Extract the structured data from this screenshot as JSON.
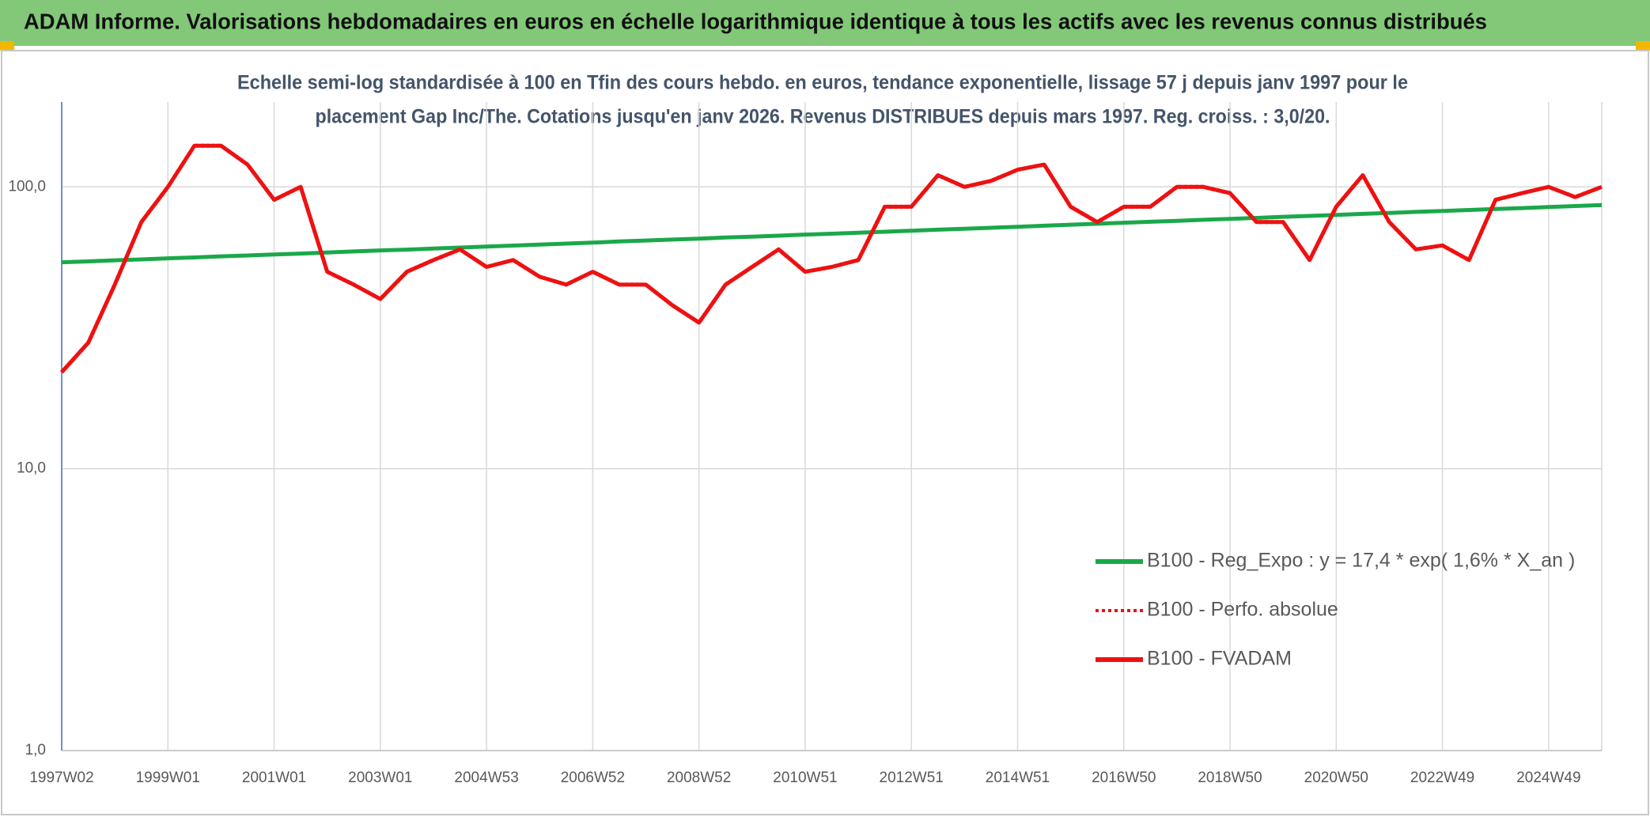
{
  "chart_data": {
    "type": "line",
    "title": "ADAM Informe. Valorisations hebdomadaires en euros en échelle logarithmique identique à tous les actifs avec les revenus connus distribués",
    "subtitle": [
      "Echelle semi-log standardisée à 100 en Tfin des cours hebdo. en euros, tendance exponentielle, lissage 57 j depuis janv 1997 pour le",
      "placement Gap Inc/The. Cotations jusqu'en janv 2026. Revenus DISTRIBUES depuis mars 1997. Reg. croiss. : 3,0/20."
    ],
    "log_scale": true,
    "grid": true,
    "legend": "right",
    "ylim": [
      1,
      200
    ],
    "yticks": [
      {
        "value": 1,
        "label": "1,0"
      },
      {
        "value": 10,
        "label": "10,0"
      },
      {
        "value": 100,
        "label": "100,0"
      }
    ],
    "categories": [
      "1997W02",
      null,
      null,
      null,
      "1999W01",
      null,
      null,
      null,
      "2001W01",
      null,
      null,
      null,
      "2003W01",
      null,
      null,
      null,
      "2004W53",
      null,
      null,
      null,
      "2006W52",
      null,
      null,
      null,
      "2008W52",
      null,
      null,
      null,
      "2010W51",
      null,
      null,
      null,
      "2012W51",
      null,
      null,
      null,
      "2014W51",
      null,
      null,
      null,
      "2016W50",
      null,
      null,
      null,
      "2018W50",
      null,
      null,
      null,
      "2020W50",
      null,
      null,
      null,
      "2022W49",
      null,
      null,
      null,
      "2024W49",
      null,
      null
    ],
    "series": [
      {
        "name": "B100 - Reg_Expo : y = 17,4 * exp( 1,6% *  X_an )",
        "color": "#1aa84a",
        "style": "solid",
        "values": [
          54.0,
          54.4,
          54.9,
          55.3,
          55.8,
          56.2,
          56.7,
          57.1,
          57.6,
          58.0,
          58.5,
          59.0,
          59.5,
          59.9,
          60.4,
          60.9,
          61.4,
          61.9,
          62.4,
          62.9,
          63.4,
          64.0,
          64.5,
          65.0,
          65.5,
          66.1,
          66.6,
          67.1,
          67.7,
          68.2,
          68.8,
          69.3,
          69.9,
          70.5,
          71.0,
          71.6,
          72.2,
          72.8,
          73.4,
          74.0,
          74.6,
          75.2,
          75.8,
          76.4,
          77.0,
          77.6,
          78.3,
          78.9,
          79.5,
          80.2,
          80.8,
          81.5,
          82.1,
          82.8,
          83.5,
          84.1,
          84.8,
          85.5,
          86.2
        ]
      },
      {
        "name": "B100 - Perfo. absolue",
        "color": "#ee1111",
        "style": "dotted",
        "values": [
          22,
          28,
          45,
          75,
          100,
          140,
          140,
          120,
          90,
          100,
          50,
          45,
          40,
          50,
          55,
          60,
          52,
          55,
          48,
          45,
          50,
          45,
          45,
          38,
          33,
          45,
          52,
          60,
          50,
          52,
          55,
          85,
          85,
          110,
          100,
          105,
          115,
          120,
          85,
          75,
          85,
          85,
          100,
          100,
          95,
          75,
          75,
          55,
          85,
          110,
          75,
          60,
          62,
          55,
          90,
          95,
          100,
          92,
          100
        ]
      },
      {
        "name": "B100 - FVADAM",
        "color": "#ee1111",
        "style": "solid",
        "values": [
          22,
          28,
          45,
          75,
          100,
          140,
          140,
          120,
          90,
          100,
          50,
          45,
          40,
          50,
          55,
          60,
          52,
          55,
          48,
          45,
          50,
          45,
          45,
          38,
          33,
          45,
          52,
          60,
          50,
          52,
          55,
          85,
          85,
          110,
          100,
          105,
          115,
          120,
          85,
          75,
          85,
          85,
          100,
          100,
          95,
          75,
          75,
          55,
          85,
          110,
          75,
          60,
          62,
          55,
          90,
          95,
          100,
          92,
          100
        ]
      }
    ]
  }
}
